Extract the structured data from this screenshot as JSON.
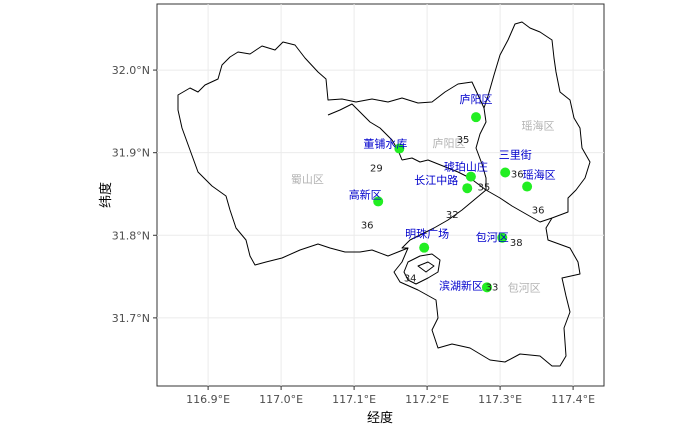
{
  "chart_data": {
    "type": "map",
    "xlabel": "经度",
    "ylabel": "纬度",
    "xlim": [
      116.83,
      117.46
    ],
    "ylim": [
      31.62,
      32.08
    ],
    "x_ticks": [
      {
        "value": 116.9,
        "label": "116.9°E"
      },
      {
        "value": 117.0,
        "label": "117.0°E"
      },
      {
        "value": 117.1,
        "label": "117.1°E"
      },
      {
        "value": 117.2,
        "label": "117.2°E"
      },
      {
        "value": 117.3,
        "label": "117.3°E"
      },
      {
        "value": 117.4,
        "label": "117.4°E"
      }
    ],
    "y_ticks": [
      {
        "value": 31.7,
        "label": "31.7°N"
      },
      {
        "value": 31.8,
        "label": "31.8°N"
      },
      {
        "value": 31.9,
        "label": "31.9°N"
      },
      {
        "value": 32.0,
        "label": "32.0°N"
      }
    ],
    "districts": [
      {
        "name": "庐阳区",
        "lon": 117.23,
        "lat": 31.912
      },
      {
        "name": "瑶海区",
        "lon": 117.352,
        "lat": 31.933
      },
      {
        "name": "蜀山区",
        "lon": 117.036,
        "lat": 31.868
      },
      {
        "name": "包河区",
        "lon": 117.333,
        "lat": 31.737
      }
    ],
    "stations": [
      {
        "name": "庐阳区",
        "lon": 117.267,
        "lat": 31.943,
        "aqi": 35
      },
      {
        "name": "董铺水库",
        "lon": 117.162,
        "lat": 31.905,
        "aqi": 29
      },
      {
        "name": "琥珀山庄",
        "lon": 117.26,
        "lat": 31.871,
        "aqi": 35
      },
      {
        "name": "三里街",
        "lon": 117.307,
        "lat": 31.876,
        "aqi": 36
      },
      {
        "name": "长江中路",
        "lon": 117.255,
        "lat": 31.857,
        "aqi": 32
      },
      {
        "name": "瑶海区",
        "lon": 117.337,
        "lat": 31.859,
        "aqi": 36
      },
      {
        "name": "高新区",
        "lon": 117.133,
        "lat": 31.841,
        "aqi": 36
      },
      {
        "name": "明珠广场",
        "lon": 117.196,
        "lat": 31.785,
        "aqi": 34
      },
      {
        "name": "包河区",
        "lon": 117.303,
        "lat": 31.797,
        "aqi": 38
      },
      {
        "name": "滨湖新区",
        "lon": 117.282,
        "lat": 31.737,
        "aqi": 33
      }
    ]
  }
}
